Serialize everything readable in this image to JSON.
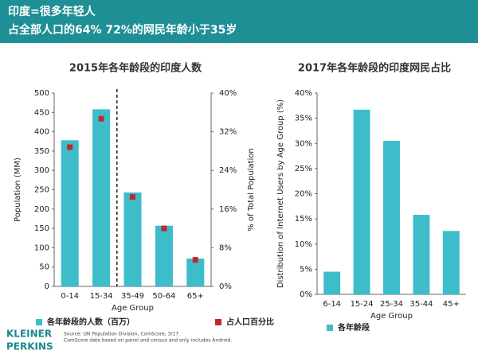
{
  "header": {
    "title": "印度=很多年轻人",
    "subtitle": "占全部人口的64%   72%的网民年龄小于35岁"
  },
  "footer": {
    "logo": [
      "KLEINER",
      "PERKINS"
    ],
    "source": [
      "Source: UN Population Division, ComScore, 3/17.",
      "ComScore data based on panel and census and only includes Android."
    ]
  },
  "chart_data": [
    {
      "type": "bar",
      "title": "2015年各年龄段的印度人数",
      "x_label": "Age Group",
      "y_label": "Population (MM)",
      "y2_label": "% of Total Population",
      "categories": [
        "0-14",
        "15-34",
        "35-49",
        "50-64",
        "65+"
      ],
      "series": [
        {
          "name": "各年龄段的人数（百万）",
          "color": "#3dbdca",
          "values": [
            378,
            458,
            243,
            157,
            72
          ]
        },
        {
          "name": "占人口百分比",
          "color": "#c0282d",
          "type": "scatter",
          "axis": "y2",
          "values": [
            28.8,
            34.7,
            18.5,
            12.0,
            5.5
          ]
        }
      ],
      "ylim": [
        0,
        500
      ],
      "yticks": [
        0,
        50,
        100,
        150,
        200,
        250,
        300,
        350,
        400,
        450,
        500
      ],
      "y2lim": [
        0,
        40
      ],
      "y2ticks": [
        {
          "value": 0,
          "label": "0%"
        },
        {
          "value": 8,
          "label": "8%"
        },
        {
          "value": 16,
          "label": "16%"
        },
        {
          "value": 24,
          "label": "24%"
        },
        {
          "value": 32,
          "label": "32%"
        },
        {
          "value": 40,
          "label": "40%"
        }
      ]
    },
    {
      "type": "bar",
      "title": "2017年各年龄段的印度网民占比",
      "x_label": "Age Group",
      "y_label": "Distribution of Internet Users by Age Group (%)",
      "categories": [
        "6-14",
        "15-24",
        "25-34",
        "35-44",
        "45+"
      ],
      "series": [
        {
          "name": "各年龄段",
          "color": "#3dbdca",
          "values": [
            4.5,
            36.7,
            30.5,
            15.8,
            12.6
          ]
        }
      ],
      "ylim": [
        0,
        40
      ],
      "yticks": [
        {
          "value": 0,
          "label": "0%"
        },
        {
          "value": 5,
          "label": "5%"
        },
        {
          "value": 10,
          "label": "10%"
        },
        {
          "value": 15,
          "label": "15%"
        },
        {
          "value": 20,
          "label": "20%"
        },
        {
          "value": 25,
          "label": "25%"
        },
        {
          "value": 30,
          "label": "30%"
        },
        {
          "value": 35,
          "label": "35%"
        },
        {
          "value": 40,
          "label": "40%"
        }
      ]
    }
  ]
}
